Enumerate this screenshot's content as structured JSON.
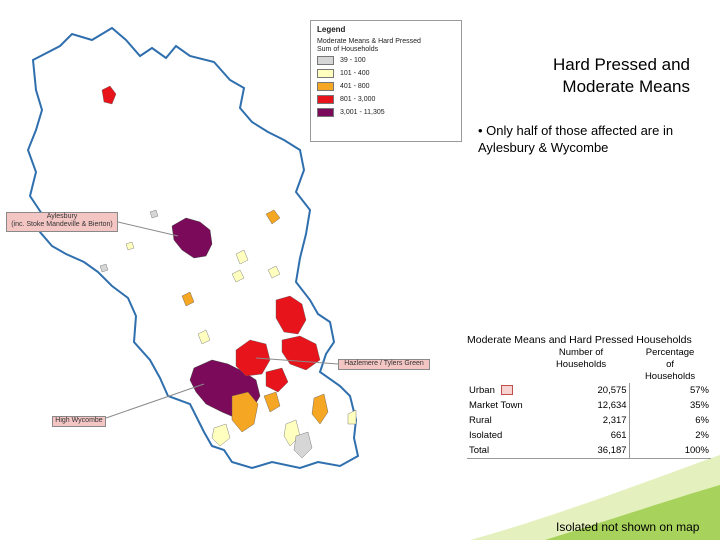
{
  "headline": {
    "line1": "Hard Pressed and",
    "line2": "Moderate Means"
  },
  "bullet": "• Only half of those affected are in Aylesbury & Wycombe",
  "legend": {
    "title": "Legend",
    "layer": "Moderate Means & Hard Pressed",
    "field": "Sum of Households",
    "classes": [
      {
        "label": "39 - 100",
        "color": "#d6d6d6"
      },
      {
        "label": "101 - 400",
        "color": "#ffffbf"
      },
      {
        "label": "401 - 800",
        "color": "#f5a623"
      },
      {
        "label": "801 - 3,000",
        "color": "#e8141b"
      },
      {
        "label": "3,001 - 11,305",
        "color": "#7b0a5a"
      }
    ]
  },
  "callouts": {
    "aylesbury_line1": "Aylesbury",
    "aylesbury_line2": "(inc. Stoke Mandeville & Bierton)",
    "hazlemere": "Hazlemere / Tylers Green",
    "high_wycombe": "High Wycombe"
  },
  "table": {
    "title": "Moderate Means and Hard Pressed Households",
    "col_households": "Number of Households",
    "col_percentage": "Percentage of Households",
    "rows": [
      {
        "label": "Urban",
        "households": "20,575",
        "percentage": "57%"
      },
      {
        "label": "Market Town",
        "households": "12,634",
        "percentage": "35%"
      },
      {
        "label": "Rural",
        "households": "2,317",
        "percentage": "6%"
      },
      {
        "label": "Isolated",
        "households": "661",
        "percentage": "2%"
      },
      {
        "label": "Total",
        "households": "36,187",
        "percentage": "100%"
      }
    ]
  },
  "footnote": "Isolated not shown on map",
  "colors": {
    "boundary": "#2f6fae",
    "background": "#ffffff",
    "swoosh_light": "#d7ea9b",
    "swoosh_dark": "#8cc43c"
  }
}
